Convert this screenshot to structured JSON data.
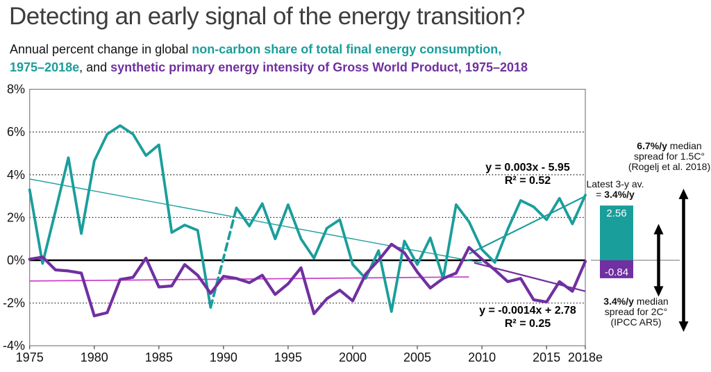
{
  "slide": {
    "title": "Detecting an early signal of the energy transition?",
    "subtitle": {
      "prefix": "Annual percent change in global ",
      "teal_part1": "non-carbon share of total final energy consumption,",
      "teal_part2": "1975–2018e",
      "mid": ", and ",
      "purple_part": "synthetic primary energy intensity of Gross World Product, 1975–2018"
    }
  },
  "colors": {
    "teal": "#1a9e9b",
    "purple": "#7030a0",
    "magenta": "#cc44cc",
    "title_gray": "#3d3d3d",
    "arrow_black": "#000000"
  },
  "annotations": {
    "noncarbon_trend": {
      "line1": "y = 0.003x - 5.95",
      "line2": "R² = 0.52"
    },
    "intensity_trend": {
      "line1": "y = -0.0014x + 2.78",
      "line2": "R² = 0.25"
    },
    "spread_15c": {
      "bold": "6.7%/y",
      "rest": " median",
      "line2": "spread for 1.5C°",
      "line3": "(Rogelj et al. 2018)"
    },
    "latest": {
      "line1": "Latest 3-y av.",
      "prefix": "= ",
      "bold": "3.4%/y"
    },
    "spread_2c": {
      "bold": "3.4%/y",
      "rest": " median",
      "line2": "spread for 2C°",
      "line3": "(IPCC AR5)"
    }
  },
  "chart_data": {
    "type": "line",
    "title": "Annual percent change, 1975-2018e",
    "xlabel": "",
    "ylabel": "",
    "ylim": [
      -4,
      8
    ],
    "grid_values": [
      6,
      4,
      2,
      -2
    ],
    "zero_line_value": 0,
    "yticks": [
      {
        "label": "8%",
        "value": 8
      },
      {
        "label": "6%",
        "value": 6
      },
      {
        "label": "4%",
        "value": 4
      },
      {
        "label": "2%",
        "value": 2
      },
      {
        "label": "0%",
        "value": 0
      },
      {
        "label": "-2%",
        "value": -2
      },
      {
        "label": "-4%",
        "value": -4
      }
    ],
    "xticks": [
      {
        "label": "1975",
        "value": 1975
      },
      {
        "label": "1980",
        "value": 1980
      },
      {
        "label": "1985",
        "value": 1985
      },
      {
        "label": "1990",
        "value": 1990
      },
      {
        "label": "1995",
        "value": 1995
      },
      {
        "label": "2000",
        "value": 2000
      },
      {
        "label": "2005",
        "value": 2005
      },
      {
        "label": "2010",
        "value": 2010
      },
      {
        "label": "2015",
        "value": 2015
      },
      {
        "label": "2018e",
        "value": 2018
      }
    ],
    "x": [
      1975,
      1976,
      1977,
      1978,
      1979,
      1980,
      1981,
      1982,
      1983,
      1984,
      1985,
      1986,
      1987,
      1988,
      1989,
      1990,
      1991,
      1992,
      1993,
      1994,
      1995,
      1996,
      1997,
      1998,
      1999,
      2000,
      2001,
      2002,
      2003,
      2004,
      2005,
      2006,
      2007,
      2008,
      2009,
      2010,
      2011,
      2012,
      2013,
      2014,
      2015,
      2016,
      2017,
      2018
    ],
    "series": [
      {
        "name": "non-carbon share of total final energy consumption",
        "color": "#1a9e9b",
        "width": 3.8,
        "dashed_from": 1989,
        "dashed_to": 1991,
        "values": [
          3.3,
          -0.15,
          2.3,
          4.8,
          1.25,
          4.65,
          5.9,
          6.3,
          5.9,
          4.9,
          5.4,
          1.3,
          1.65,
          1.4,
          -2.2,
          0.1,
          2.45,
          1.6,
          2.65,
          1.0,
          2.6,
          1.0,
          0.1,
          1.5,
          1.9,
          -0.2,
          -0.85,
          0.45,
          -2.4,
          0.9,
          -0.2,
          1.05,
          -0.85,
          2.6,
          1.8,
          0.5,
          -0.1,
          1.45,
          2.8,
          2.5,
          1.9,
          2.9,
          1.7,
          3.05
        ]
      },
      {
        "name": "synthetic primary energy intensity of Gross World Product",
        "color": "#7030a0",
        "width": 4.2,
        "values": [
          0.05,
          0.15,
          -0.45,
          -0.5,
          -0.6,
          -2.6,
          -2.45,
          -0.9,
          -0.8,
          0.1,
          -1.25,
          -1.2,
          -0.2,
          -0.7,
          -1.55,
          -0.75,
          -0.85,
          -1.05,
          -0.7,
          -1.6,
          -1.1,
          -0.35,
          -2.5,
          -1.8,
          -1.4,
          -1.9,
          -0.65,
          0.0,
          0.75,
          0.35,
          -0.55,
          -1.3,
          -0.85,
          -0.6,
          0.6,
          0.05,
          -0.45,
          -1.0,
          -0.85,
          -1.85,
          -1.95,
          -1.0,
          -1.45,
          -0.05
        ]
      }
    ],
    "trendlines": [
      {
        "name": "noncarbon-trend-1975-2010",
        "color": "#1a9e9b",
        "width": 1.4,
        "x1": 1975,
        "v1": 3.8,
        "x2": 2010,
        "v2": -0.12,
        "equation": "y = 0.003x - 5.95",
        "r2": "R² = 0.52"
      },
      {
        "name": "noncarbon-trend-2009-2018",
        "color": "#1a9e9b",
        "width": 2.2,
        "x1": 2009,
        "v1": 0.3,
        "x2": 2018,
        "v2": 3.0
      },
      {
        "name": "intensity-trend-1975-2009",
        "color": "#cc44cc",
        "width": 1.8,
        "x1": 1975,
        "v1": -0.97,
        "x2": 2009,
        "v2": -0.78,
        "equation": "y = -0.0014x + 2.78",
        "r2": "R² = 0.25"
      },
      {
        "name": "intensity-trend-2009-2018",
        "color": "#7030a0",
        "width": 2.2,
        "x1": 2009.4,
        "v1": -0.12,
        "x2": 2018,
        "v2": -1.45
      }
    ],
    "latest_bars": {
      "note": "Latest 3-y av. = 3.4%/y",
      "teal": {
        "value": 2.56,
        "label": "2.56"
      },
      "purple": {
        "value": -0.84,
        "label": "-0.84"
      }
    },
    "spread_arrows": [
      {
        "name": "spread-2c-arrow",
        "total_span_pct_per_year": 3.4,
        "half_span": 1.7
      },
      {
        "name": "spread-15c-arrow",
        "total_span_pct_per_year": 6.7,
        "half_span": 3.35
      }
    ],
    "legend_position": "in-subtitle",
    "grid": "dotted-horizontal"
  }
}
